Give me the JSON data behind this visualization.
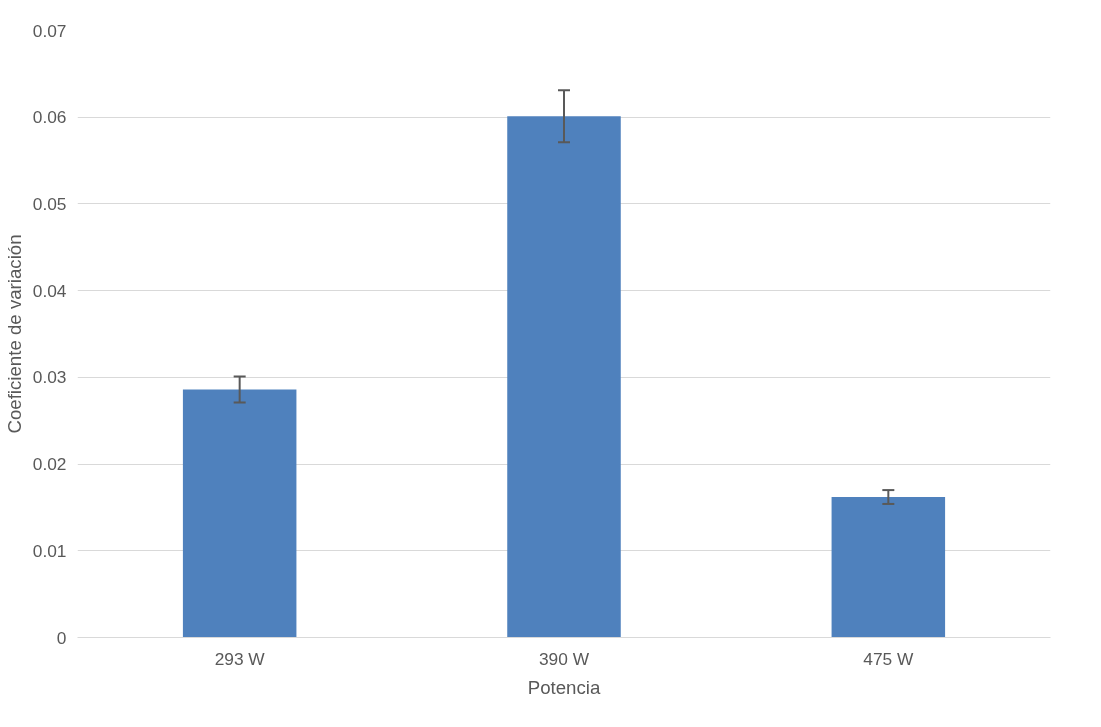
{
  "chart_data": {
    "type": "bar",
    "xlabel": "Potencia",
    "ylabel": "Coeficiente de variación",
    "categories": [
      "293 W",
      "390 W",
      "475 W"
    ],
    "values": [
      0.0286,
      0.0601,
      0.0162
    ],
    "errors": [
      0.0015,
      0.003,
      0.0008
    ],
    "color": "#4f81bd",
    "ylim": [
      0,
      0.07
    ],
    "yticks": [
      {
        "value": 0,
        "label": "0"
      },
      0.01,
      0.02,
      0.03,
      0.04,
      0.05,
      0.06,
      0.07
    ],
    "grid": "y"
  }
}
